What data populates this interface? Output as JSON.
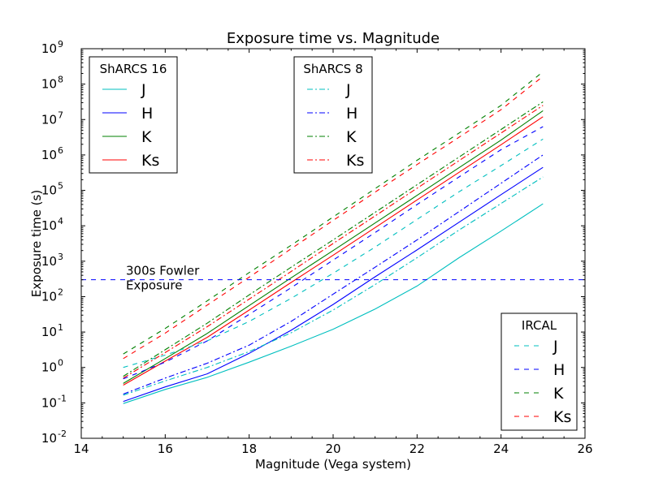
{
  "chart_data": {
    "type": "line",
    "title": "Exposure time vs. Magnitude",
    "xlabel": "Magnitude (Vega system)",
    "ylabel": "Exposure time (s)",
    "xlim": [
      14,
      26
    ],
    "ylim_log10": [
      -2,
      9
    ],
    "yscale": "log",
    "x_ticks": [
      "14",
      "16",
      "18",
      "20",
      "22",
      "24",
      "26"
    ],
    "y_tick_exponents": [
      "-2",
      "-1",
      "0",
      "1",
      "2",
      "3",
      "4",
      "5",
      "6",
      "7",
      "8",
      "9"
    ],
    "y_tick_base": "10",
    "x": [
      15,
      16,
      17,
      18,
      19,
      20,
      21,
      22,
      23,
      24,
      25
    ],
    "colors": {
      "J": "#00bfbf",
      "H": "#0000ff",
      "K": "#008000",
      "Ks": "#ff0000"
    },
    "groups": [
      {
        "name": "ShARCS 16",
        "dash": "solid",
        "legend": [
          "J",
          "H",
          "K",
          "Ks"
        ],
        "series": [
          {
            "name": "J",
            "log10_values": [
              -1.02,
              -0.62,
              -0.28,
              0.15,
              0.6,
              1.08,
              1.65,
              2.3,
              3.1,
              3.85,
              4.62
            ]
          },
          {
            "name": "H",
            "log10_values": [
              -0.96,
              -0.55,
              -0.18,
              0.4,
              1.05,
              1.78,
              2.56,
              3.32,
              4.1,
              4.88,
              5.65
            ]
          },
          {
            "name": "K",
            "log10_values": [
              -0.45,
              0.25,
              0.96,
              1.75,
              2.53,
              3.3,
              4.08,
              4.86,
              5.64,
              6.42,
              7.25
            ]
          },
          {
            "name": "Ks",
            "log10_values": [
              -0.5,
              0.18,
              0.85,
              1.62,
              2.4,
              3.17,
              3.95,
              4.73,
              5.51,
              6.29,
              7.08
            ]
          }
        ]
      },
      {
        "name": "ShARCS 8",
        "dash": "dashdot",
        "legend": [
          "J",
          "H",
          "K",
          "Ks"
        ],
        "series": [
          {
            "name": "J",
            "log10_values": [
              -0.78,
              -0.38,
              0.0,
              0.45,
              0.98,
              1.62,
              2.34,
              3.1,
              3.88,
              4.63,
              5.38
            ]
          },
          {
            "name": "H",
            "log10_values": [
              -0.75,
              -0.3,
              0.12,
              0.63,
              1.3,
              2.07,
              2.83,
              3.6,
              4.4,
              5.2,
              6.0
            ]
          },
          {
            "name": "K",
            "log10_values": [
              -0.25,
              0.5,
              1.25,
              2.05,
              2.83,
              3.6,
              4.38,
              5.16,
              5.94,
              6.72,
              7.5
            ]
          },
          {
            "name": "Ks",
            "log10_values": [
              -0.3,
              0.42,
              1.15,
              1.93,
              2.71,
              3.5,
              4.28,
              5.06,
              5.84,
              6.62,
              7.4
            ]
          }
        ]
      },
      {
        "name": "IRCAL",
        "dash": "dashed",
        "legend": [
          "J",
          "H",
          "K",
          "Ks"
        ],
        "series": [
          {
            "name": "J",
            "log10_values": [
              0.0,
              0.35,
              0.75,
              1.3,
              1.95,
              2.66,
              3.4,
              4.18,
              4.96,
              5.7,
              6.45
            ]
          },
          {
            "name": "H",
            "log10_values": [
              -0.32,
              0.15,
              0.75,
              1.5,
              2.25,
              3.03,
              3.81,
              4.6,
              5.38,
              6.15,
              6.8
            ]
          },
          {
            "name": "K",
            "log10_values": [
              0.38,
              1.1,
              1.88,
              2.68,
              3.45,
              4.25,
              5.05,
              5.85,
              6.62,
              7.4,
              8.35
            ]
          },
          {
            "name": "Ks",
            "log10_values": [
              0.25,
              0.97,
              1.76,
              2.55,
              3.35,
              4.15,
              4.95,
              5.73,
              6.5,
              7.28,
              8.22
            ]
          }
        ]
      }
    ],
    "reference_line": {
      "value_s": 300,
      "label_line1": "300s Fowler",
      "label_line2": "Exposure",
      "color": "#0000ff",
      "dash": "dashed"
    },
    "legend_positions": {
      "ShARCS 16": "top-left",
      "ShARCS 8": "top-center",
      "IRCAL": "bottom-right"
    }
  }
}
